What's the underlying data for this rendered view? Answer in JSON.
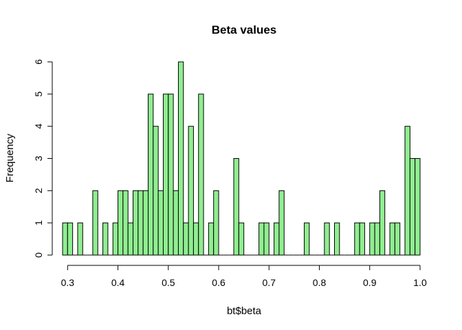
{
  "chart_data": {
    "type": "bar",
    "title": "Beta values",
    "xlabel": "bt$beta",
    "ylabel": "Frequency",
    "bin_width": 0.01,
    "bin_start": 0.29,
    "values": [
      1,
      1,
      0,
      1,
      0,
      0,
      2,
      0,
      1,
      0,
      1,
      2,
      2,
      1,
      2,
      2,
      2,
      5,
      4,
      2,
      5,
      5,
      2,
      6,
      1,
      4,
      1,
      5,
      0,
      1,
      2,
      0,
      0,
      0,
      3,
      1,
      0,
      0,
      0,
      1,
      1,
      0,
      1,
      2,
      0,
      0,
      0,
      0,
      1,
      0,
      0,
      0,
      1,
      0,
      1,
      0,
      0,
      0,
      1,
      1,
      0,
      1,
      1,
      2,
      0,
      1,
      1,
      0,
      4,
      3,
      3
    ],
    "xlim": [
      0.29,
      1.0
    ],
    "ylim": [
      0,
      6
    ],
    "x_ticks": [
      "0.3",
      "0.4",
      "0.5",
      "0.6",
      "0.7",
      "0.8",
      "0.9",
      "1.0"
    ],
    "y_ticks": [
      "0",
      "1",
      "2",
      "3",
      "4",
      "5",
      "6"
    ],
    "bar_color": "#90EE90",
    "edge_color": "#000000",
    "grid": false
  }
}
